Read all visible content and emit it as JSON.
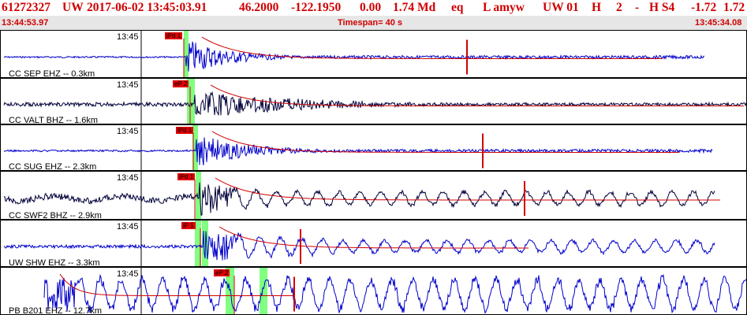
{
  "header": {
    "event_id": "61272327",
    "network": "UW",
    "datetime": "2017-06-02 13:45:03.91",
    "lat": "46.2000",
    "lon": "-122.1950",
    "depth": "0.00",
    "magnitude": "1.74 Md",
    "type": "eq",
    "flags": "L amyw",
    "source": "UW 01",
    "h_field": "H",
    "num": "2",
    "dash": "-",
    "quality": "H S4",
    "val1": "-1.72",
    "val2": "1.72"
  },
  "subheader": {
    "start_time": "13:44:53.97",
    "timespan": "Timespan=  40 s",
    "end_time": "13:45:34.08"
  },
  "colors": {
    "header_text": "#d00000",
    "trace_blue": "#0000cc",
    "trace_navy": "#00003a",
    "coda_red": "#d00000",
    "pick_green": "#80ff80"
  },
  "panels": [
    {
      "time_label": "13:45",
      "station_label": "CC SEP EHZ -- 0.3km",
      "pick_label": "iPd 1",
      "trace_color": "blue"
    },
    {
      "time_label": "13:45",
      "station_label": "CC VALT BHZ -- 1.6km",
      "pick_label": "eP 2",
      "trace_color": "navy"
    },
    {
      "time_label": "13:45",
      "station_label": "CC SUG EHZ -- 2.3km",
      "pick_label": "iPd 1",
      "trace_color": "blue"
    },
    {
      "time_label": "13:45",
      "station_label": "CC SWF2 BHZ -- 2.9km",
      "pick_label": "iPd 1",
      "trace_color": "navy"
    },
    {
      "time_label": "13:45",
      "station_label": "UW SHW EHZ -- 3.3km",
      "pick_label": "iP 1",
      "trace_color": "blue"
    },
    {
      "time_label": "13:45",
      "station_label": "PB B201 EHZ -- 12.7km",
      "pick_label": "eP 2",
      "trace_color": "blue"
    }
  ]
}
